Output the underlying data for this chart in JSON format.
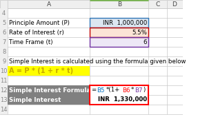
{
  "col_labels": [
    "",
    "A",
    "B",
    "C",
    "D"
  ],
  "row_labels": [
    "4",
    "5",
    "6",
    "7",
    "8",
    "9",
    "10",
    "11",
    "12",
    "13",
    "14"
  ],
  "rows": {
    "4": {
      "A": "",
      "B": ""
    },
    "5": {
      "A": "Principle Amount (P)",
      "B": "INR  1,000,000"
    },
    "6": {
      "A": "Rate of Interest (r)",
      "B": "5.5%"
    },
    "7": {
      "A": "Time Frame (t)",
      "B": "6"
    },
    "8": {
      "A": "",
      "B": ""
    },
    "9": {
      "A": "Simple Interest is calculated using the formula given below",
      "B": ""
    },
    "10": {
      "A": "A = P * (1 + r * t)",
      "B": ""
    },
    "11": {
      "A": "",
      "B": ""
    },
    "12": {
      "A": "Simple Interest Formula",
      "B": ""
    },
    "13": {
      "A": "Simple Interest",
      "B": "INR  1,330,000"
    },
    "14": {
      "A": "",
      "B": ""
    }
  },
  "formula_parts": [
    [
      "=",
      "#000000"
    ],
    [
      "B5",
      "#0070c0"
    ],
    [
      "*(1+",
      "#000000"
    ],
    [
      "B6",
      "#ff0000"
    ],
    [
      "*",
      "#000000"
    ],
    [
      "B7",
      "#7030a0"
    ],
    [
      ")",
      "#000000"
    ]
  ],
  "bg_white": "#ffffff",
  "bg_header": "#efefef",
  "bg_yellow": "#ffff00",
  "bg_blue": "#dce6f1",
  "bg_red": "#fce4d6",
  "bg_purple": "#ede7f6",
  "bg_gray": "#808080",
  "border_light": "#c8c8c8",
  "border_blue": "#2e75b6",
  "border_red_cell": "#c00000",
  "border_purple": "#7030a0",
  "border_red_box": "#ff0000",
  "header_green": "#70ad47",
  "text_black": "#000000",
  "text_white": "#ffffff",
  "text_gray": "#888888",
  "text_gold": "#c8a800"
}
